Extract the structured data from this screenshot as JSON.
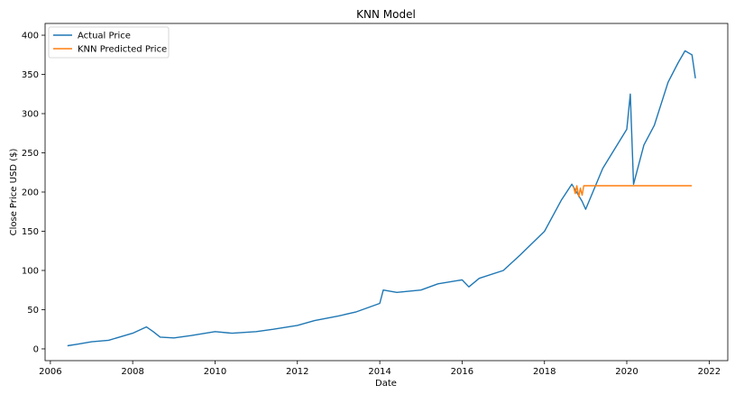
{
  "chart_data": {
    "type": "line",
    "title": "KNN Model",
    "xlabel": "Date",
    "ylabel": "Close Price USD ($)",
    "xlim": [
      "2005-11-15",
      "2022-06-15"
    ],
    "ylim": [
      -15,
      415
    ],
    "x_ticks": [
      "2006",
      "2008",
      "2010",
      "2012",
      "2014",
      "2016",
      "2018",
      "2020",
      "2022"
    ],
    "y_ticks": [
      0,
      50,
      100,
      150,
      200,
      250,
      300,
      350,
      400
    ],
    "grid": false,
    "legend_position": "top-left",
    "series": [
      {
        "name": "Actual Price",
        "color": "#1f77b4",
        "x": [
          "2006-06-01",
          "2006-09-01",
          "2007-01-01",
          "2007-06-01",
          "2008-01-01",
          "2008-05-01",
          "2008-07-01",
          "2008-09-01",
          "2009-01-01",
          "2009-06-01",
          "2010-01-01",
          "2010-06-01",
          "2011-01-01",
          "2011-06-01",
          "2012-01-01",
          "2012-06-01",
          "2013-01-01",
          "2013-06-01",
          "2014-01-01",
          "2014-02-01",
          "2014-06-01",
          "2015-01-01",
          "2015-06-01",
          "2016-01-01",
          "2016-03-01",
          "2016-06-01",
          "2017-01-01",
          "2017-06-01",
          "2018-01-01",
          "2018-06-01",
          "2018-09-01",
          "2018-12-01",
          "2019-01-01",
          "2019-06-01",
          "2020-01-01",
          "2020-02-01",
          "2020-03-01",
          "2020-06-01",
          "2020-09-01",
          "2021-01-01",
          "2021-04-01",
          "2021-06-01",
          "2021-08-01",
          "2021-09-01"
        ],
        "y": [
          4,
          6,
          9,
          11,
          20,
          28,
          22,
          15,
          14,
          17,
          22,
          20,
          22,
          25,
          30,
          36,
          42,
          47,
          58,
          75,
          72,
          75,
          83,
          88,
          79,
          90,
          100,
          120,
          150,
          190,
          210,
          188,
          178,
          230,
          280,
          325,
          210,
          260,
          285,
          340,
          365,
          380,
          375,
          345
        ]
      },
      {
        "name": "KNN Predicted Price",
        "color": "#ff7f0e",
        "x": [
          "2018-09-15",
          "2018-10-01",
          "2018-10-15",
          "2018-11-01",
          "2018-11-15",
          "2018-12-01",
          "2018-12-15",
          "2019-01-01",
          "2019-06-01",
          "2020-01-01",
          "2021-01-01",
          "2021-07-31"
        ],
        "y": [
          207,
          198,
          208,
          194,
          205,
          196,
          208,
          208,
          208,
          208,
          208,
          208
        ]
      }
    ]
  }
}
